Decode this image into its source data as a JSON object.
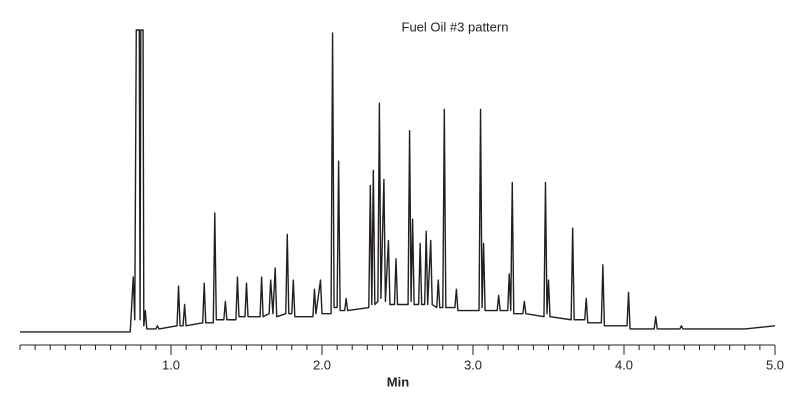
{
  "chart_data": {
    "type": "line",
    "title": "Fuel Oil #3 pattern",
    "x_label": "Min",
    "x": [
      0.0,
      0.73,
      0.75,
      0.76,
      0.77,
      0.79,
      0.795,
      0.8,
      0.815,
      0.82,
      0.83,
      0.84,
      0.9,
      0.91,
      0.92,
      1.04,
      1.05,
      1.06,
      1.08,
      1.09,
      1.1,
      1.21,
      1.22,
      1.23,
      1.28,
      1.29,
      1.3,
      1.35,
      1.36,
      1.37,
      1.43,
      1.44,
      1.45,
      1.49,
      1.5,
      1.51,
      1.59,
      1.6,
      1.61,
      1.65,
      1.66,
      1.675,
      1.69,
      1.7,
      1.76,
      1.77,
      1.78,
      1.8,
      1.81,
      1.82,
      1.94,
      1.95,
      1.96,
      1.99,
      2.0,
      2.06,
      2.07,
      2.08,
      2.1,
      2.11,
      2.12,
      2.15,
      2.16,
      2.17,
      2.31,
      2.32,
      2.33,
      2.34,
      2.35,
      2.37,
      2.38,
      2.39,
      2.41,
      2.42,
      2.44,
      2.45,
      2.48,
      2.49,
      2.5,
      2.57,
      2.58,
      2.59,
      2.6,
      2.61,
      2.64,
      2.65,
      2.66,
      2.68,
      2.69,
      2.7,
      2.72,
      2.73,
      2.76,
      2.77,
      2.78,
      2.8,
      2.81,
      2.82,
      2.88,
      2.89,
      2.9,
      3.04,
      3.05,
      3.06,
      3.07,
      3.08,
      3.16,
      3.17,
      3.18,
      3.23,
      3.24,
      3.25,
      3.26,
      3.27,
      3.33,
      3.34,
      3.35,
      3.47,
      3.48,
      3.49,
      3.5,
      3.51,
      3.65,
      3.66,
      3.67,
      3.74,
      3.75,
      3.76,
      3.85,
      3.86,
      3.87,
      4.02,
      4.03,
      4.04,
      4.2,
      4.21,
      4.22,
      4.37,
      4.38,
      4.39,
      4.53,
      4.8,
      5.0
    ],
    "values": [
      1,
      1,
      19,
      5,
      100,
      100,
      5,
      100,
      100,
      3,
      8,
      2,
      2,
      3,
      2,
      3,
      16,
      3,
      3,
      10,
      3,
      4,
      17,
      4,
      4,
      40,
      5,
      5,
      11,
      5,
      5,
      19,
      6,
      6,
      17,
      6,
      6,
      19,
      6,
      7,
      18,
      7,
      22,
      6,
      7,
      33,
      7,
      7,
      18,
      6,
      6,
      15,
      7,
      18,
      7,
      7,
      99,
      9,
      9,
      57,
      8,
      8,
      12,
      8,
      9,
      49,
      10,
      54,
      10,
      11,
      76,
      12,
      51,
      11,
      31,
      10,
      10,
      25,
      10,
      10,
      67,
      11,
      38,
      10,
      10,
      30,
      10,
      10,
      34,
      10,
      31,
      10,
      9,
      18,
      9,
      9,
      74,
      9,
      9,
      15,
      8,
      8,
      74,
      9,
      30,
      8,
      8,
      13,
      8,
      8,
      20,
      8,
      50,
      7,
      7,
      11,
      7,
      6,
      50,
      7,
      18,
      6,
      5,
      35,
      5,
      5,
      12,
      4,
      4,
      23,
      3,
      3,
      14,
      2,
      2,
      6,
      2,
      2,
      3,
      2,
      2,
      2,
      3
    ],
    "color": "#231f20",
    "xlim": [
      0,
      5
    ],
    "ylim": [
      0,
      100
    ],
    "xticks": [
      {
        "value": 1,
        "label": "1.0"
      },
      {
        "value": 2,
        "label": "2.0"
      },
      {
        "value": 3,
        "label": "3.0"
      },
      {
        "value": 4,
        "label": "4.0"
      },
      {
        "value": 5,
        "label": "5.0"
      }
    ],
    "minor_xticks": [
      0,
      0.1,
      0.2,
      0.3,
      0.4,
      0.5,
      0.6,
      0.7,
      0.8,
      0.9,
      1,
      1.1,
      1.2,
      1.3,
      1.4,
      1.5,
      1.6,
      1.7,
      1.8,
      1.9,
      2,
      2.1,
      2.2,
      2.3,
      2.4,
      2.5,
      2.6,
      2.7,
      2.8,
      2.9,
      3,
      3.1,
      3.2,
      3.3,
      3.4,
      3.5,
      3.6,
      3.7,
      3.8,
      3.9,
      4,
      4.1,
      4.2,
      4.3,
      4.4,
      4.5,
      4.6,
      4.7,
      4.8,
      4.9,
      5
    ]
  }
}
